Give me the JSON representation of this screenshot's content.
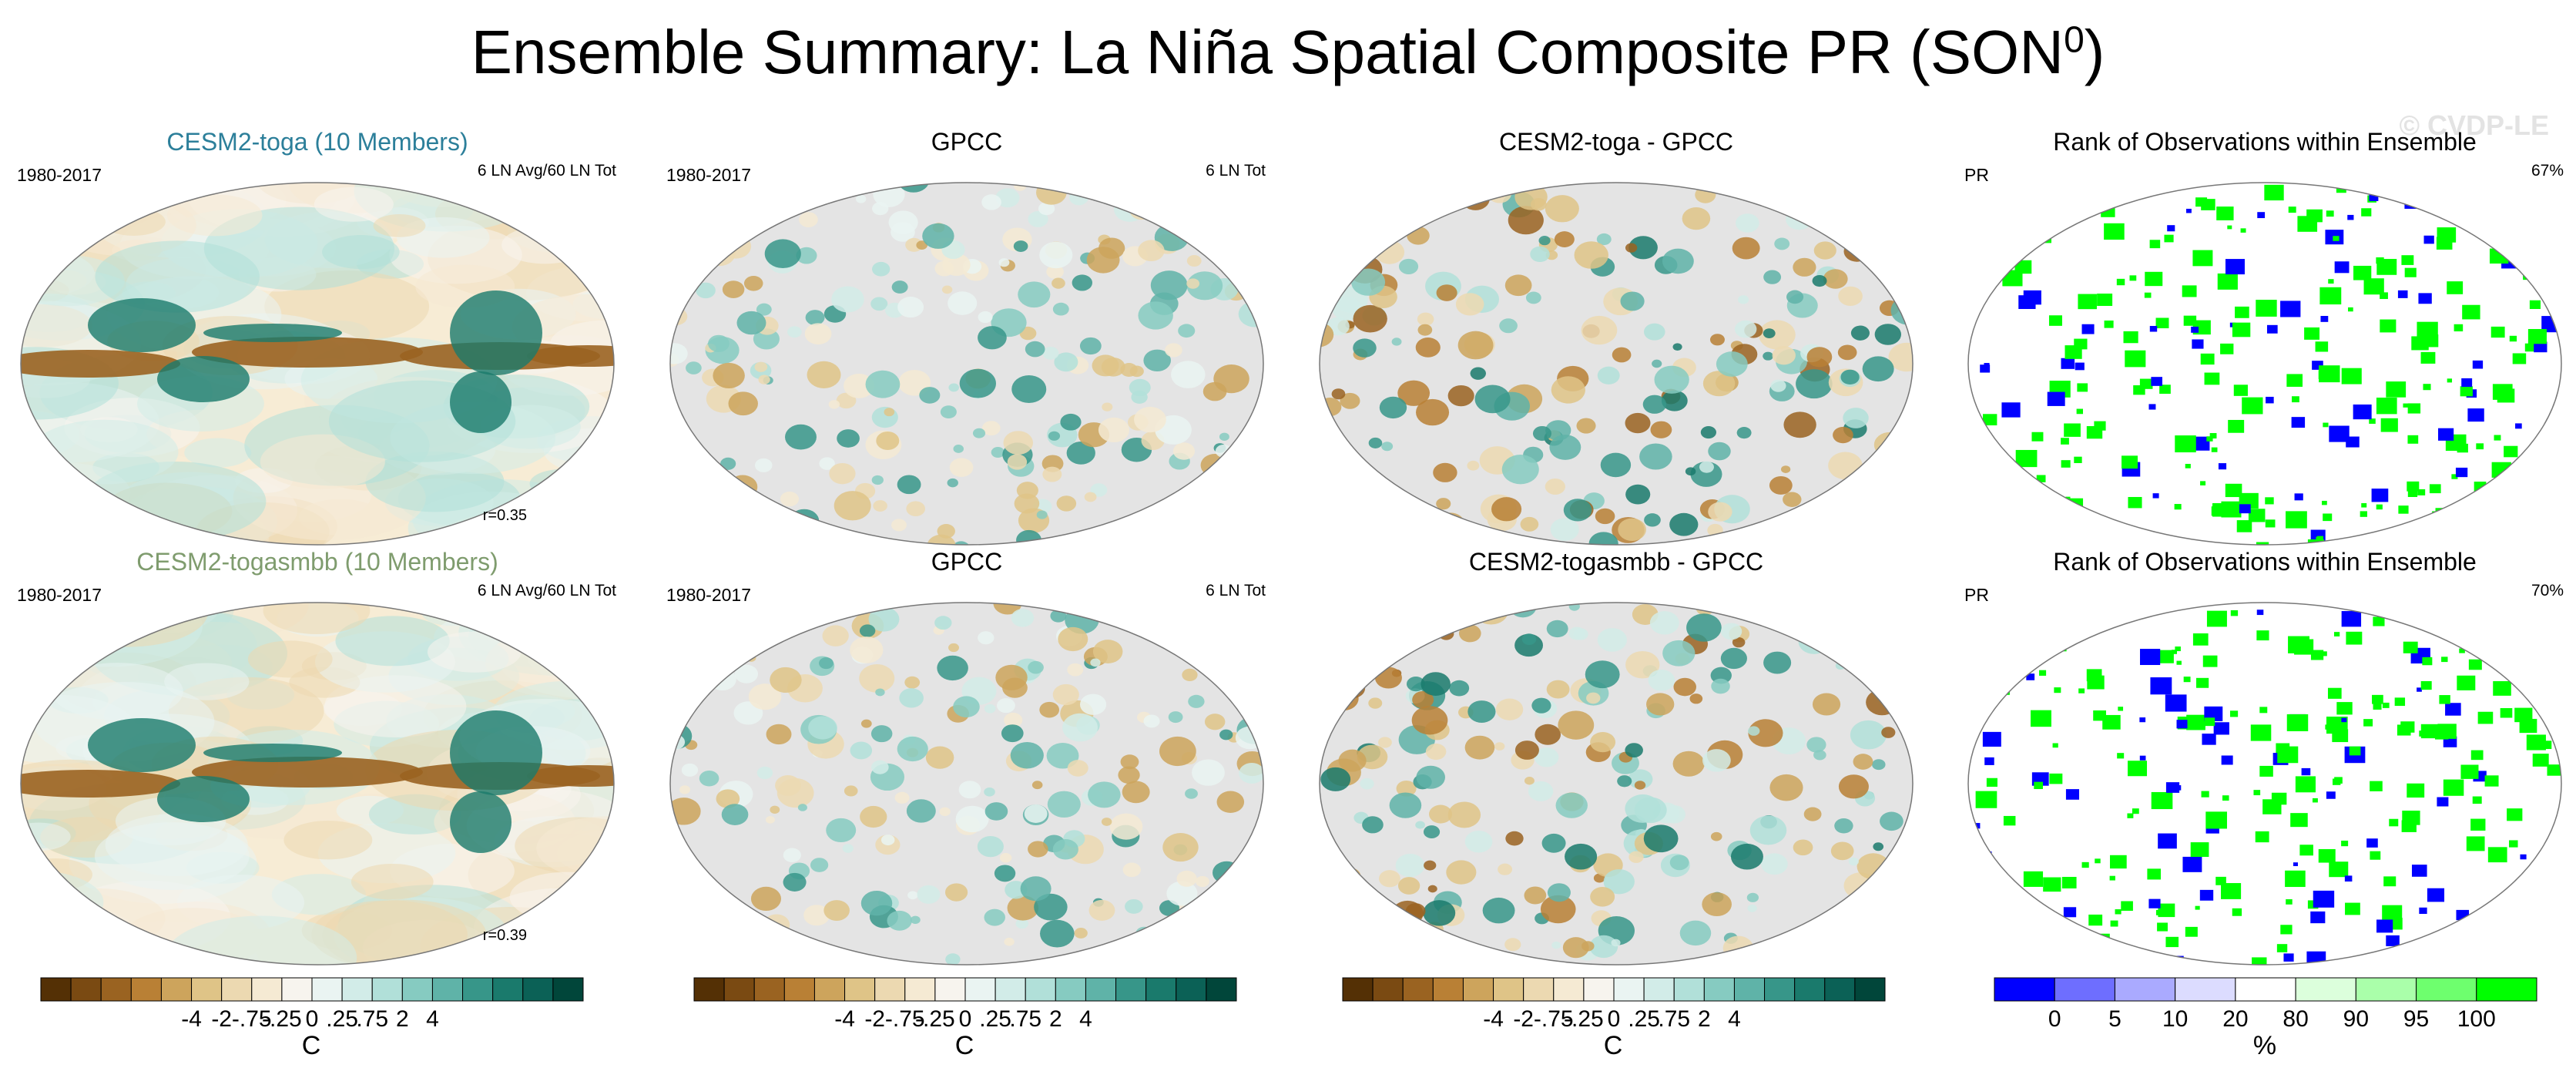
{
  "title": "Ensemble Summary: La Niña Spatial Composite PR (SON",
  "title_sup": "0",
  "title_end": ")",
  "watermark": "© CVDP-LE",
  "panels": [
    {
      "title": "CESM2-toga (10 Members)",
      "title_color": "#2c7f9a",
      "left": "1980-2017",
      "right": "6 LN Avg/60 LN Tot",
      "corr": "r=0.35",
      "kind": "model"
    },
    {
      "title": "GPCC",
      "title_color": "#000000",
      "left": "1980-2017",
      "right": "6 LN Tot",
      "corr": "",
      "kind": "obs"
    },
    {
      "title": "CESM2-toga - GPCC",
      "title_color": "#000000",
      "left": "",
      "right": "",
      "corr": "",
      "kind": "diff"
    },
    {
      "title": "Rank of Observations within Ensemble",
      "title_color": "#000000",
      "left": "PR",
      "right": "67%",
      "corr": "",
      "kind": "rank"
    },
    {
      "title": "CESM2-togasmbb (10 Members)",
      "title_color": "#7f9c6e",
      "left": "1980-2017",
      "right": "6 LN Avg/60 LN Tot",
      "corr": "r=0.39",
      "kind": "model"
    },
    {
      "title": "GPCC",
      "title_color": "#000000",
      "left": "1980-2017",
      "right": "6 LN Tot",
      "corr": "",
      "kind": "obs"
    },
    {
      "title": "CESM2-togasmbb - GPCC",
      "title_color": "#000000",
      "left": "",
      "right": "",
      "corr": "",
      "kind": "diff"
    },
    {
      "title": "Rank of Observations within Ensemble",
      "title_color": "#000000",
      "left": "PR",
      "right": "70%",
      "corr": "",
      "kind": "rank"
    }
  ],
  "colorbars": [
    {
      "type": "brbg",
      "unit": "C",
      "ticks": [
        "-4",
        "-2",
        "-.75",
        "-.25",
        "0",
        ".25",
        ".75",
        "2",
        "4"
      ],
      "colors": [
        "#543005",
        "#7a4a12",
        "#9a6321",
        "#b98035",
        "#cda45c",
        "#dfc487",
        "#ecd9b1",
        "#f5ead3",
        "#f7f4ee",
        "#eaf4f2",
        "#d2ece8",
        "#b1e0d9",
        "#86cbc1",
        "#5fb3a8",
        "#379689",
        "#1a7a6c",
        "#0b6156",
        "#01463a"
      ]
    },
    {
      "type": "brbg",
      "unit": "C",
      "ticks": [
        "-4",
        "-2",
        "-.75",
        "-.25",
        "0",
        ".25",
        ".75",
        "2",
        "4"
      ],
      "colors": [
        "#543005",
        "#7a4a12",
        "#9a6321",
        "#b98035",
        "#cda45c",
        "#dfc487",
        "#ecd9b1",
        "#f5ead3",
        "#f7f4ee",
        "#eaf4f2",
        "#d2ece8",
        "#b1e0d9",
        "#86cbc1",
        "#5fb3a8",
        "#379689",
        "#1a7a6c",
        "#0b6156",
        "#01463a"
      ]
    },
    {
      "type": "brbg",
      "unit": "C",
      "ticks": [
        "-4",
        "-2",
        "-.75",
        "-.25",
        "0",
        ".25",
        ".75",
        "2",
        "4"
      ],
      "colors": [
        "#543005",
        "#7a4a12",
        "#9a6321",
        "#b98035",
        "#cda45c",
        "#dfc487",
        "#ecd9b1",
        "#f5ead3",
        "#f7f4ee",
        "#eaf4f2",
        "#d2ece8",
        "#b1e0d9",
        "#86cbc1",
        "#5fb3a8",
        "#379689",
        "#1a7a6c",
        "#0b6156",
        "#01463a"
      ]
    },
    {
      "type": "rank",
      "unit": "%",
      "ticks": [
        "0",
        "5",
        "10",
        "20",
        "80",
        "90",
        "95",
        "100"
      ],
      "colors": [
        "#0000ff",
        "#6e6eff",
        "#aaaaff",
        "#dcdcff",
        "#ffffff",
        "#dcffdc",
        "#aaffaa",
        "#6eff6e",
        "#00ff00"
      ]
    }
  ],
  "chart_data": {
    "type": "heatmap",
    "title": "Ensemble Summary: La Niña Spatial Composite PR (SON0)",
    "variable": "PR",
    "season": "SON",
    "period": "1980-2017",
    "rows": [
      {
        "model": "CESM2-toga",
        "members": 10,
        "composite": "6 LN Avg/60 LN Tot",
        "pattern_correlation": 0.35,
        "rank_pct": 67
      },
      {
        "model": "CESM2-togasmbb",
        "members": 10,
        "composite": "6 LN Avg/60 LN Tot",
        "pattern_correlation": 0.39,
        "rank_pct": 70
      }
    ],
    "observations": {
      "dataset": "GPCC",
      "composite": "6 LN Tot"
    },
    "colorbar_anomaly": {
      "unit": "C",
      "levels": [
        -4,
        -2,
        -0.75,
        -0.25,
        0,
        0.25,
        0.75,
        2,
        4
      ]
    },
    "colorbar_rank": {
      "unit": "%",
      "levels": [
        0,
        5,
        10,
        20,
        80,
        90,
        95,
        100
      ]
    }
  }
}
